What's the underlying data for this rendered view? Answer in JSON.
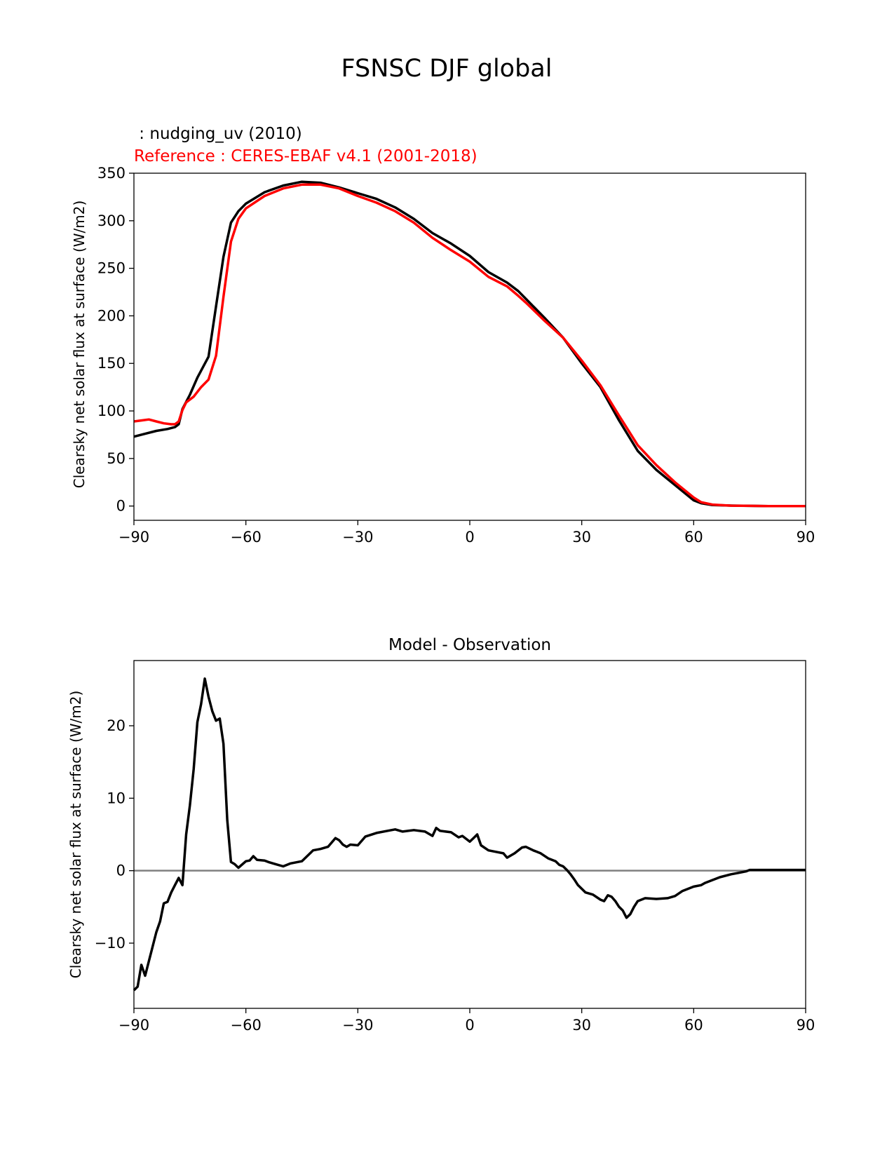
{
  "suptitle": "FSNSC DJF global",
  "chart_data": [
    {
      "type": "line",
      "test_label": " : nudging_uv (2010)",
      "ref_label": "Reference : CERES-EBAF v4.1 (2001-2018)",
      "title": "",
      "xlabel": "",
      "ylabel": "Clearsky net solar flux at surface (W/m2)",
      "xlim": [
        -90,
        90
      ],
      "ylim": [
        -15,
        350
      ],
      "xticks": [
        -90,
        -60,
        -30,
        0,
        30,
        60,
        90
      ],
      "xtick_labels": [
        "−90",
        "−60",
        "−30",
        "0",
        "30",
        "60",
        "90"
      ],
      "yticks": [
        0,
        50,
        100,
        150,
        200,
        250,
        300,
        350
      ],
      "ytick_labels": [
        "0",
        "50",
        "100",
        "150",
        "200",
        "250",
        "300",
        "350"
      ],
      "series": [
        {
          "color": "#000000",
          "x": [
            -90,
            -87,
            -84,
            -81,
            -79,
            -78,
            -77,
            -75,
            -73,
            -70,
            -68,
            -66,
            -64,
            -62,
            -60,
            -55,
            -50,
            -45,
            -40,
            -35,
            -30,
            -25,
            -20,
            -15,
            -10,
            -5,
            0,
            5,
            10,
            13,
            15,
            20,
            25,
            30,
            35,
            40,
            45,
            50,
            55,
            60,
            62,
            65,
            70,
            75,
            80,
            85,
            90
          ],
          "y": [
            73,
            76,
            79,
            81,
            83,
            86,
            102,
            117,
            135,
            157,
            210,
            262,
            298,
            310,
            318,
            330,
            337,
            341,
            340,
            335,
            329,
            323,
            314,
            302,
            287,
            276,
            263,
            246,
            235,
            226,
            218,
            198,
            177,
            150,
            125,
            90,
            58,
            38,
            22,
            6,
            3,
            1,
            0.5,
            0.2,
            0,
            0,
            0
          ]
        },
        {
          "color": "#ff0000",
          "x": [
            -90,
            -88,
            -86,
            -84,
            -82,
            -80,
            -79,
            -78,
            -77,
            -76,
            -74,
            -72,
            -70,
            -68,
            -66,
            -64,
            -62,
            -60,
            -55,
            -50,
            -45,
            -40,
            -35,
            -30,
            -25,
            -20,
            -15,
            -10,
            -5,
            0,
            5,
            10,
            13,
            15,
            20,
            25,
            30,
            35,
            40,
            45,
            50,
            55,
            60,
            62,
            65,
            70,
            75,
            80,
            85,
            90
          ],
          "y": [
            89,
            90,
            91,
            89,
            87,
            86,
            86,
            89,
            101,
            109,
            115,
            125,
            133,
            158,
            220,
            278,
            302,
            313,
            326,
            334,
            338,
            338,
            334,
            326,
            319,
            310,
            298,
            282,
            269,
            257,
            241,
            231,
            221,
            214,
            195,
            177,
            153,
            127,
            95,
            64,
            43,
            25,
            9,
            4,
            1.5,
            0.4,
            0.2,
            0,
            0,
            0
          ]
        }
      ]
    },
    {
      "type": "line",
      "title": "Model - Observation",
      "xlabel": "",
      "ylabel": "Clearsky net solar flux at surface (W/m2)",
      "xlim": [
        -90,
        90
      ],
      "ylim": [
        -19,
        29
      ],
      "xticks": [
        -90,
        -60,
        -30,
        0,
        30,
        60,
        90
      ],
      "xtick_labels": [
        "−90",
        "−60",
        "−30",
        "0",
        "30",
        "60",
        "90"
      ],
      "yticks": [
        -10,
        0,
        10,
        20
      ],
      "ytick_labels": [
        "−10",
        "0",
        "10",
        "20"
      ],
      "zero_line_color": "#808080",
      "series": [
        {
          "color": "#000000",
          "x": [
            -90,
            -89,
            -88,
            -87,
            -86,
            -85,
            -84,
            -83,
            -82,
            -81,
            -80,
            -79,
            -78,
            -77,
            -76,
            -75,
            -74,
            -73,
            -72,
            -71,
            -70,
            -69,
            -68,
            -67,
            -66,
            -65,
            -64,
            -63,
            -62,
            -60,
            -59,
            -58,
            -57,
            -55,
            -54,
            -52,
            -50,
            -48,
            -45,
            -42,
            -40,
            -38,
            -36,
            -35,
            -34,
            -33,
            -32,
            -30,
            -28,
            -25,
            -22,
            -20,
            -18,
            -15,
            -12,
            -10,
            -9,
            -8,
            -5,
            -3,
            -2,
            0,
            1,
            2,
            3,
            5,
            7,
            9,
            10,
            12,
            14,
            15,
            17,
            19,
            21,
            23,
            24,
            25,
            26,
            27,
            28,
            29,
            30,
            31,
            33,
            35,
            36,
            37,
            38,
            39,
            40,
            41,
            42,
            43,
            44,
            45,
            47,
            50,
            53,
            55,
            57,
            60,
            62,
            63,
            65,
            67,
            70,
            72,
            74,
            75,
            80,
            85,
            90
          ],
          "y": [
            -16.5,
            -16,
            -13,
            -14.5,
            -12.5,
            -10.5,
            -8.5,
            -7,
            -4.5,
            -4.3,
            -3,
            -2,
            -1,
            -2,
            5,
            9,
            14,
            20.5,
            23,
            26.5,
            24,
            22,
            20.7,
            21,
            17.5,
            7,
            1.2,
            0.9,
            0.4,
            1.3,
            1.4,
            2,
            1.5,
            1.4,
            1.2,
            0.9,
            0.6,
            1,
            1.3,
            2.8,
            3,
            3.3,
            4.5,
            4.2,
            3.6,
            3.3,
            3.6,
            3.5,
            4.7,
            5.2,
            5.5,
            5.7,
            5.4,
            5.6,
            5.4,
            4.8,
            5.9,
            5.5,
            5.3,
            4.6,
            4.8,
            4,
            4.5,
            5,
            3.5,
            2.8,
            2.6,
            2.4,
            1.8,
            2.4,
            3.2,
            3.3,
            2.8,
            2.4,
            1.7,
            1.3,
            0.8,
            0.6,
            0.1,
            -0.5,
            -1.2,
            -2,
            -2.5,
            -3,
            -3.3,
            -4,
            -4.2,
            -3.4,
            -3.6,
            -4.2,
            -5,
            -5.5,
            -6.5,
            -6,
            -5,
            -4.2,
            -3.8,
            -3.9,
            -3.8,
            -3.5,
            -2.8,
            -2.2,
            -2,
            -1.7,
            -1.3,
            -0.9,
            -0.5,
            -0.3,
            -0.1,
            0.1,
            0.1,
            0.1,
            0.1
          ]
        }
      ]
    }
  ]
}
